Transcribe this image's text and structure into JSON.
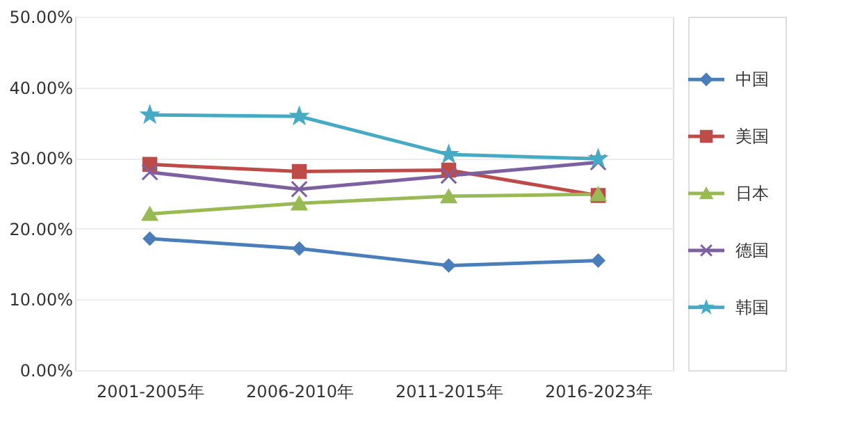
{
  "chart_data": {
    "type": "line",
    "categories": [
      "2001-2005年",
      "2006-2010年",
      "2011-2015年",
      "2016-2023年"
    ],
    "ylim": [
      0,
      50
    ],
    "yticks": [
      {
        "value": 0,
        "label": "0.00%"
      },
      {
        "value": 10,
        "label": "10.00%"
      },
      {
        "value": 20,
        "label": "20.00%"
      },
      {
        "value": 30,
        "label": "30.00%"
      },
      {
        "value": 40,
        "label": "40.00%"
      },
      {
        "value": 50,
        "label": "50.00%"
      }
    ],
    "grid": "y",
    "legend": "right",
    "series": [
      {
        "name": "中国",
        "color": "#4a7ebb",
        "marker": "diamond",
        "values": [
          18.6,
          17.2,
          14.8,
          15.5
        ]
      },
      {
        "name": "美国",
        "color": "#be4b48",
        "marker": "square",
        "values": [
          29.1,
          28.1,
          28.3,
          24.7
        ]
      },
      {
        "name": "日本",
        "color": "#98b954",
        "marker": "triangle",
        "values": [
          22.1,
          23.6,
          24.6,
          24.9
        ]
      },
      {
        "name": "德国",
        "color": "#7d60a0",
        "marker": "cross",
        "values": [
          28.0,
          25.6,
          27.5,
          29.4
        ]
      },
      {
        "name": "韩国",
        "color": "#46aac5",
        "marker": "star",
        "values": [
          36.1,
          35.9,
          30.5,
          29.9
        ]
      }
    ]
  }
}
